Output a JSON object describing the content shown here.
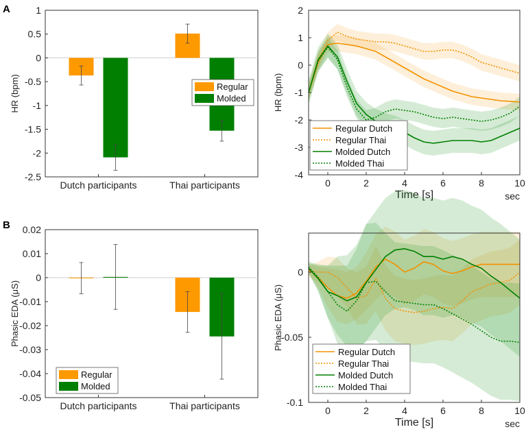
{
  "panels": [
    "A",
    "B"
  ],
  "chart_data": [
    {
      "id": "hr-bar",
      "type": "bar",
      "panel": "A",
      "categories": [
        "Dutch participants",
        "Thai participants"
      ],
      "series": [
        {
          "name": "Regular",
          "values": [
            -0.37,
            0.51
          ],
          "errors": [
            0.2,
            0.2
          ]
        },
        {
          "name": "Molded",
          "values": [
            -2.09,
            -1.53
          ],
          "errors": [
            0.27,
            0.22
          ]
        }
      ],
      "ylabel": "HR (bpm)",
      "ylim": [
        -2.5,
        1
      ],
      "yticks": [
        "1",
        "0.5",
        "0",
        "-0.5",
        "-1",
        "-1.5",
        "-2",
        "-2.5"
      ],
      "ytick_values": [
        1,
        0.5,
        0,
        -0.5,
        -1,
        -1.5,
        -2,
        -2.5
      ],
      "legend": "right",
      "colors": {
        "Regular": "#ff9900",
        "Molded": "#007f00"
      }
    },
    {
      "id": "hr-line",
      "type": "line",
      "panel": "A",
      "x": [
        -1,
        -0.5,
        0,
        0.5,
        1,
        1.5,
        2,
        2.5,
        3,
        3.5,
        4,
        4.5,
        5,
        5.5,
        6,
        6.5,
        7,
        7.5,
        8,
        8.5,
        9,
        9.5,
        10
      ],
      "series": [
        {
          "name": "Regular Dutch",
          "style": "solid",
          "color": "#f39200",
          "values": [
            -1.0,
            0.1,
            0.75,
            0.8,
            0.75,
            0.7,
            0.6,
            0.5,
            0.3,
            0.1,
            -0.1,
            -0.3,
            -0.5,
            -0.65,
            -0.8,
            -0.95,
            -1.05,
            -1.15,
            -1.2,
            -1.25,
            -1.3,
            -1.32,
            -1.35
          ],
          "band": [
            0.3,
            0.3,
            0.3,
            0.3,
            0.3,
            0.3,
            0.3,
            0.3,
            0.3,
            0.3,
            0.3,
            0.3,
            0.3,
            0.3,
            0.3,
            0.3,
            0.3,
            0.3,
            0.3,
            0.3,
            0.3,
            0.3,
            0.3
          ]
        },
        {
          "name": "Regular Thai",
          "style": "dotted",
          "color": "#f39200",
          "values": [
            -1.0,
            0.2,
            0.9,
            1.2,
            1.05,
            0.95,
            0.9,
            0.85,
            0.85,
            0.8,
            0.7,
            0.6,
            0.5,
            0.5,
            0.55,
            0.55,
            0.45,
            0.3,
            0.1,
            0.0,
            -0.1,
            -0.2,
            -0.3
          ],
          "band": [
            0.3,
            0.3,
            0.3,
            0.3,
            0.3,
            0.3,
            0.3,
            0.3,
            0.3,
            0.3,
            0.3,
            0.3,
            0.3,
            0.3,
            0.3,
            0.3,
            0.3,
            0.3,
            0.3,
            0.3,
            0.3,
            0.3,
            0.3
          ]
        },
        {
          "name": "Molded Dutch",
          "style": "solid",
          "color": "#007f00",
          "values": [
            -1.0,
            0.2,
            0.7,
            0.3,
            -0.6,
            -1.4,
            -1.8,
            -2.05,
            -2.2,
            -2.3,
            -2.45,
            -2.65,
            -2.8,
            -2.85,
            -2.8,
            -2.75,
            -2.75,
            -2.75,
            -2.8,
            -2.75,
            -2.6,
            -2.45,
            -2.3
          ],
          "band": [
            0.45,
            0.45,
            0.45,
            0.45,
            0.45,
            0.45,
            0.45,
            0.45,
            0.45,
            0.45,
            0.45,
            0.45,
            0.45,
            0.45,
            0.45,
            0.45,
            0.45,
            0.45,
            0.45,
            0.45,
            0.45,
            0.45,
            0.45
          ]
        },
        {
          "name": "Molded Thai",
          "style": "dotted",
          "color": "#007f00",
          "values": [
            -1.0,
            0.15,
            0.65,
            0.2,
            -0.8,
            -1.6,
            -2.0,
            -1.9,
            -1.7,
            -1.6,
            -1.65,
            -1.7,
            -1.8,
            -1.9,
            -1.95,
            -1.9,
            -1.95,
            -2.0,
            -2.05,
            -2.0,
            -1.9,
            -1.75,
            -1.5
          ],
          "band": [
            0.35,
            0.35,
            0.35,
            0.35,
            0.35,
            0.35,
            0.35,
            0.35,
            0.35,
            0.35,
            0.35,
            0.35,
            0.35,
            0.35,
            0.35,
            0.35,
            0.35,
            0.35,
            0.35,
            0.35,
            0.35,
            0.35,
            0.35
          ]
        }
      ],
      "ylabel": "HR (bpm)",
      "xlabel": "Time [s]",
      "xunit": "sec",
      "xlim": [
        -1,
        10
      ],
      "ylim": [
        -4,
        2
      ],
      "xticks": [
        "0",
        "2",
        "4",
        "6",
        "8",
        "10"
      ],
      "xtick_values": [
        0,
        2,
        4,
        6,
        8,
        10
      ],
      "yticks": [
        "2",
        "1",
        "0",
        "-1",
        "-2",
        "-3",
        "-4"
      ],
      "ytick_values": [
        2,
        1,
        0,
        -1,
        -2,
        -3,
        -4
      ],
      "legend": "bottom-left"
    },
    {
      "id": "eda-bar",
      "type": "bar",
      "panel": "B",
      "categories": [
        "Dutch participants",
        "Thai participants"
      ],
      "series": [
        {
          "name": "Regular",
          "values": [
            -0.0002,
            -0.0143
          ],
          "errors": [
            0.0065,
            0.0085
          ]
        },
        {
          "name": "Molded",
          "values": [
            0.0003,
            -0.0245
          ],
          "errors": [
            0.0135,
            0.0178
          ]
        }
      ],
      "ylabel": "Phasic EDA (μS)",
      "ylim": [
        -0.05,
        0.02
      ],
      "yticks": [
        "0.02",
        "0.01",
        "0",
        "-0.01",
        "-0.02",
        "-0.03",
        "-0.04",
        "-0.05"
      ],
      "ytick_values": [
        0.02,
        0.01,
        0,
        -0.01,
        -0.02,
        -0.03,
        -0.04,
        -0.05
      ],
      "legend": "bottom-left",
      "colors": {
        "Regular": "#ff9900",
        "Molded": "#007f00"
      }
    },
    {
      "id": "eda-line",
      "type": "line",
      "panel": "B",
      "x": [
        -1,
        -0.5,
        0,
        0.5,
        1,
        1.5,
        2,
        2.5,
        3,
        3.5,
        4,
        4.5,
        5,
        5.5,
        6,
        6.5,
        7,
        7.5,
        8,
        8.5,
        9,
        9.5,
        10
      ],
      "series": [
        {
          "name": "Regular Dutch",
          "style": "solid",
          "color": "#f39200",
          "values": [
            0.002,
            -0.004,
            -0.012,
            -0.018,
            -0.02,
            -0.016,
            -0.007,
            0.004,
            0.01,
            0.006,
            0.0,
            0.003,
            0.008,
            0.006,
            0.001,
            -0.001,
            0.001,
            0.004,
            0.006,
            0.006,
            0.006,
            0.006,
            0.006
          ],
          "band": [
            0.004,
            0.008,
            0.015,
            0.02,
            0.02,
            0.02,
            0.022,
            0.025,
            0.025,
            0.025,
            0.025,
            0.025,
            0.025,
            0.025,
            0.025,
            0.025,
            0.025,
            0.025,
            0.025,
            0.025,
            0.025,
            0.025,
            0.025
          ]
        },
        {
          "name": "Regular Thai",
          "style": "dotted",
          "color": "#f39200",
          "values": [
            0.001,
            0.0,
            0.0,
            -0.004,
            -0.012,
            -0.02,
            -0.018,
            -0.005,
            -0.02,
            -0.028,
            -0.03,
            -0.031,
            -0.03,
            -0.028,
            -0.027,
            -0.028,
            -0.022,
            -0.015,
            -0.012,
            -0.009,
            -0.008,
            -0.006,
            0.0
          ],
          "band": [
            0.004,
            0.008,
            0.012,
            0.015,
            0.015,
            0.02,
            0.022,
            0.025,
            0.025,
            0.025,
            0.025,
            0.025,
            0.025,
            0.025,
            0.025,
            0.025,
            0.025,
            0.025,
            0.025,
            0.025,
            0.025,
            0.025,
            0.025
          ]
        },
        {
          "name": "Molded Dutch",
          "style": "solid",
          "color": "#007f00",
          "values": [
            0.003,
            -0.005,
            -0.015,
            -0.018,
            -0.022,
            -0.019,
            -0.008,
            0.002,
            0.012,
            0.017,
            0.018,
            0.016,
            0.012,
            0.012,
            0.01,
            0.012,
            0.01,
            0.006,
            0.003,
            -0.003,
            -0.008,
            -0.014,
            -0.02
          ],
          "band": [
            0.004,
            0.01,
            0.02,
            0.03,
            0.035,
            0.04,
            0.045,
            0.045,
            0.045,
            0.045,
            0.045,
            0.045,
            0.045,
            0.045,
            0.045,
            0.045,
            0.045,
            0.045,
            0.045,
            0.045,
            0.045,
            0.045,
            0.045
          ]
        },
        {
          "name": "Molded Thai",
          "style": "dotted",
          "color": "#007f00",
          "values": [
            0.004,
            -0.004,
            -0.015,
            -0.025,
            -0.03,
            -0.022,
            -0.008,
            -0.007,
            -0.015,
            -0.022,
            -0.023,
            -0.024,
            -0.025,
            -0.025,
            -0.028,
            -0.032,
            -0.036,
            -0.04,
            -0.045,
            -0.05,
            -0.053,
            -0.053,
            -0.054
          ],
          "band": [
            0.004,
            0.01,
            0.02,
            0.03,
            0.035,
            0.04,
            0.045,
            0.045,
            0.045,
            0.045,
            0.045,
            0.045,
            0.045,
            0.045,
            0.045,
            0.045,
            0.045,
            0.045,
            0.045,
            0.045,
            0.045,
            0.045,
            0.045
          ]
        }
      ],
      "ylabel": "Phasic EDA (μS)",
      "xlabel": "Time [s]",
      "xunit": "sec",
      "xlim": [
        -1,
        10
      ],
      "ylim": [
        -0.1,
        0.03
      ],
      "xticks": [
        "0",
        "2",
        "4",
        "6",
        "8",
        "10"
      ],
      "xtick_values": [
        0,
        2,
        4,
        6,
        8,
        10
      ],
      "yticks": [
        "0",
        "-0.05",
        "-0.1"
      ],
      "ytick_values": [
        0,
        -0.05,
        -0.1
      ],
      "legend": "bottom-right"
    }
  ]
}
